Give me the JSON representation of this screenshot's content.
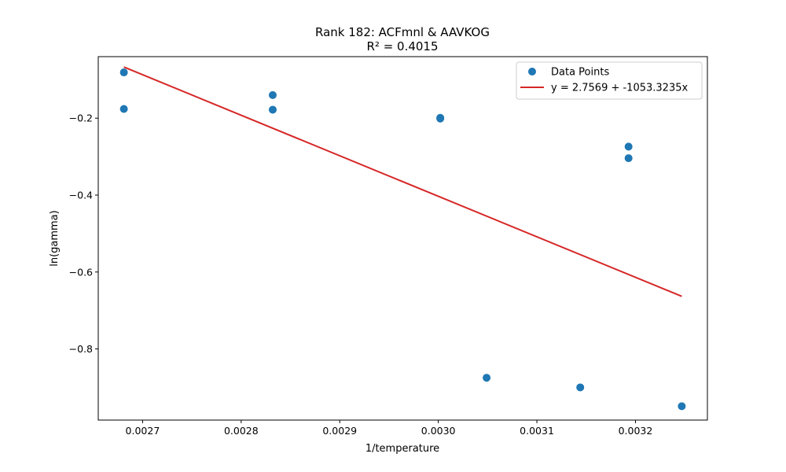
{
  "chart_data": {
    "type": "scatter",
    "title": "Rank 182: ACFmnl & AAVKOG",
    "subtitle": "R² = 0.4015",
    "xlabel": "1/temperature",
    "ylabel": "ln(gamma)",
    "xlim": [
      0.002655,
      0.003273
    ],
    "ylim": [
      -0.985,
      -0.04
    ],
    "xticks": [
      0.0027,
      0.0028,
      0.0029,
      0.003,
      0.0031,
      0.0032
    ],
    "xtick_labels": [
      "0.0027",
      "0.0028",
      "0.0029",
      "0.0030",
      "0.0031",
      "0.0032"
    ],
    "yticks": [
      -0.2,
      -0.4,
      -0.6,
      -0.8
    ],
    "ytick_labels": [
      "−0.2",
      "−0.4",
      "−0.6",
      "−0.8"
    ],
    "grid": false,
    "legend_position": "top-right",
    "series": [
      {
        "name": "Data Points",
        "kind": "scatter",
        "color": "#1f77b4",
        "points": [
          {
            "x": 0.002681,
            "y": -0.081
          },
          {
            "x": 0.002681,
            "y": -0.176
          },
          {
            "x": 0.002832,
            "y": -0.14
          },
          {
            "x": 0.002832,
            "y": -0.178
          },
          {
            "x": 0.003002,
            "y": -0.199
          },
          {
            "x": 0.003002,
            "y": -0.201
          },
          {
            "x": 0.003049,
            "y": -0.875
          },
          {
            "x": 0.003144,
            "y": -0.9
          },
          {
            "x": 0.003193,
            "y": -0.274
          },
          {
            "x": 0.003193,
            "y": -0.304
          },
          {
            "x": 0.003247,
            "y": -0.949
          }
        ]
      },
      {
        "name": "y = 2.7569 + -1053.3235x",
        "kind": "line",
        "color": "#d62728",
        "intercept": 2.7569,
        "slope": -1053.3235,
        "x_range": [
          0.002681,
          0.003247
        ]
      }
    ]
  }
}
